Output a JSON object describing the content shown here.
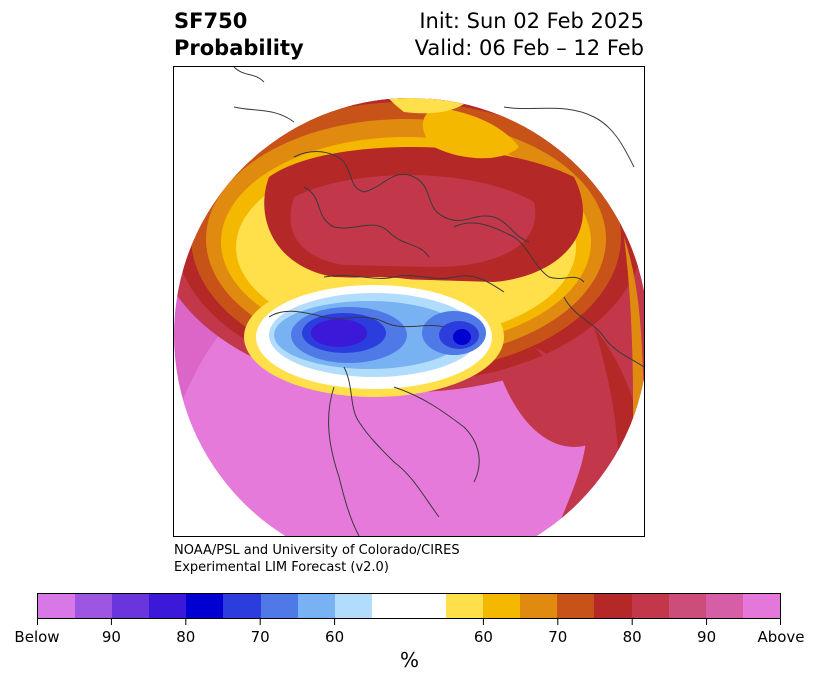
{
  "title": {
    "left_line1": "SF750",
    "left_line2": "Probability",
    "right_line1": "Init: Sun 02 Feb 2025",
    "right_line2": "Valid: 06 Feb – 12 Feb"
  },
  "credit": {
    "line1": "NOAA/PSL and University of Colorado/CIRES",
    "line2": "Experimental LIM Forecast (v2.0)"
  },
  "map": {
    "projection": "polar stereographic (North Pole)"
  },
  "colorbar": {
    "unit": "%",
    "colors": [
      "#d877e6",
      "#9e55e2",
      "#6a35dc",
      "#3c18d8",
      "#0000d0",
      "#2b3ddc",
      "#4f79e6",
      "#78b2f2",
      "#b2dcfc",
      "#ffffff",
      "#ffffff",
      "#ffe04a",
      "#f5b800",
      "#e08b10",
      "#c85318",
      "#b52828",
      "#c2384a",
      "#cc4d7a",
      "#d65ea6",
      "#e477da"
    ],
    "tick_labels": [
      "Below",
      "90",
      "80",
      "70",
      "60",
      "60",
      "70",
      "80",
      "90",
      "Above"
    ]
  }
}
